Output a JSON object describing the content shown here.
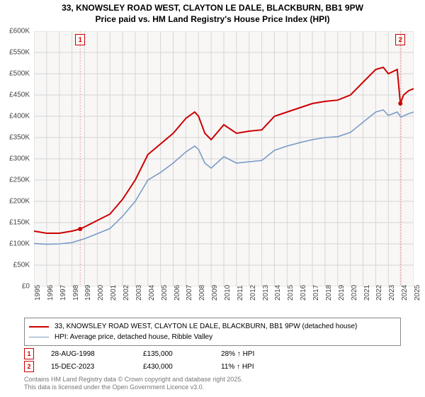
{
  "title_line1": "33, KNOWSLEY ROAD WEST, CLAYTON LE DALE, BLACKBURN, BB1 9PW",
  "title_line2": "Price paid vs. HM Land Registry's House Price Index (HPI)",
  "chart": {
    "type": "line",
    "background_color": "#f8f7f6",
    "grid_color": "#d6d6d6",
    "axis_color": "#888888",
    "label_fontsize": 10,
    "title_fontsize": 12,
    "x_min_year": 1995,
    "x_max_year": 2025,
    "x_ticks": [
      1995,
      1996,
      1997,
      1998,
      1999,
      2000,
      2001,
      2002,
      2003,
      2004,
      2005,
      2006,
      2007,
      2008,
      2009,
      2010,
      2011,
      2012,
      2013,
      2014,
      2015,
      2016,
      2017,
      2018,
      2019,
      2020,
      2021,
      2022,
      2023,
      2024,
      2025
    ],
    "y_min": 0,
    "y_max": 600000,
    "y_tick_step": 50000,
    "y_tick_labels": [
      "£0",
      "£50K",
      "£100K",
      "£150K",
      "£200K",
      "£250K",
      "£300K",
      "£350K",
      "£400K",
      "£450K",
      "£500K",
      "£550K",
      "£600K"
    ],
    "series": [
      {
        "name": "price_paid",
        "label": "33, KNOWSLEY ROAD WEST, CLAYTON LE DALE, BLACKBURN, BB1 9PW (detached house)",
        "color": "#cc0000",
        "line_width": 2,
        "points": [
          [
            1995,
            130000
          ],
          [
            1996,
            125000
          ],
          [
            1997,
            125000
          ],
          [
            1998,
            130000
          ],
          [
            1998.65,
            135000
          ],
          [
            1999,
            140000
          ],
          [
            2000,
            155000
          ],
          [
            2001,
            170000
          ],
          [
            2002,
            205000
          ],
          [
            2003,
            250000
          ],
          [
            2004,
            310000
          ],
          [
            2005,
            335000
          ],
          [
            2006,
            360000
          ],
          [
            2007,
            395000
          ],
          [
            2007.7,
            410000
          ],
          [
            2008,
            400000
          ],
          [
            2008.5,
            360000
          ],
          [
            2009,
            345000
          ],
          [
            2010,
            380000
          ],
          [
            2011,
            360000
          ],
          [
            2012,
            365000
          ],
          [
            2013,
            368000
          ],
          [
            2014,
            400000
          ],
          [
            2015,
            410000
          ],
          [
            2016,
            420000
          ],
          [
            2017,
            430000
          ],
          [
            2018,
            435000
          ],
          [
            2019,
            438000
          ],
          [
            2020,
            450000
          ],
          [
            2021,
            480000
          ],
          [
            2022,
            510000
          ],
          [
            2022.6,
            515000
          ],
          [
            2023,
            500000
          ],
          [
            2023.7,
            510000
          ],
          [
            2023.95,
            430000
          ],
          [
            2024.2,
            450000
          ],
          [
            2024.6,
            460000
          ],
          [
            2025,
            465000
          ]
        ]
      },
      {
        "name": "hpi",
        "label": "HPI: Average price, detached house, Ribble Valley",
        "color": "#7a9cc6",
        "line_width": 1.6,
        "points": [
          [
            1995,
            101000
          ],
          [
            1996,
            99000
          ],
          [
            1997,
            100000
          ],
          [
            1998,
            103000
          ],
          [
            1999,
            112000
          ],
          [
            2000,
            124000
          ],
          [
            2001,
            136000
          ],
          [
            2002,
            165000
          ],
          [
            2003,
            200000
          ],
          [
            2004,
            250000
          ],
          [
            2005,
            268000
          ],
          [
            2006,
            290000
          ],
          [
            2007,
            316000
          ],
          [
            2007.7,
            330000
          ],
          [
            2008,
            322000
          ],
          [
            2008.5,
            290000
          ],
          [
            2009,
            278000
          ],
          [
            2010,
            305000
          ],
          [
            2011,
            290000
          ],
          [
            2012,
            293000
          ],
          [
            2013,
            296000
          ],
          [
            2014,
            320000
          ],
          [
            2015,
            330000
          ],
          [
            2016,
            338000
          ],
          [
            2017,
            345000
          ],
          [
            2018,
            350000
          ],
          [
            2019,
            352000
          ],
          [
            2020,
            362000
          ],
          [
            2021,
            386000
          ],
          [
            2022,
            410000
          ],
          [
            2022.6,
            415000
          ],
          [
            2023,
            402000
          ],
          [
            2023.7,
            410000
          ],
          [
            2024,
            398000
          ],
          [
            2024.5,
            405000
          ],
          [
            2025,
            410000
          ]
        ]
      }
    ],
    "markers_on_chart": [
      {
        "num": "1",
        "year": 1998.65,
        "price": 135000,
        "box_color": "#cc0000"
      },
      {
        "num": "2",
        "year": 2023.95,
        "price": 430000,
        "box_color": "#cc0000"
      }
    ],
    "marker_line_color": "#e8a0a0",
    "marker_dot_color": "#cc0000"
  },
  "legend_items": [
    {
      "color": "#cc0000",
      "width": 2,
      "label": "33, KNOWSLEY ROAD WEST, CLAYTON LE DALE, BLACKBURN, BB1 9PW (detached house)"
    },
    {
      "color": "#7a9cc6",
      "width": 1.6,
      "label": "HPI: Average price, detached house, Ribble Valley"
    }
  ],
  "events": [
    {
      "num": "1",
      "date": "28-AUG-1998",
      "price": "£135,000",
      "delta": "28% ↑ HPI",
      "box_color": "#cc0000"
    },
    {
      "num": "2",
      "date": "15-DEC-2023",
      "price": "£430,000",
      "delta": "11% ↑ HPI",
      "box_color": "#cc0000"
    }
  ],
  "footer_line1": "Contains HM Land Registry data © Crown copyright and database right 2025.",
  "footer_line2": "This data is licensed under the Open Government Licence v3.0."
}
